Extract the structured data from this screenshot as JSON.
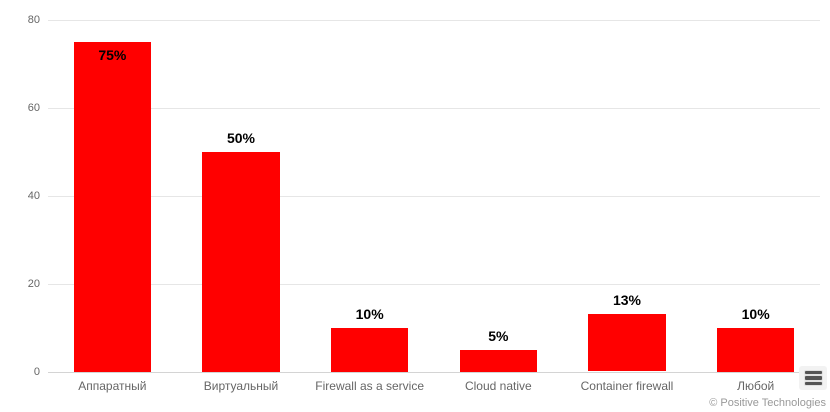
{
  "chart_data": {
    "type": "bar",
    "title": "",
    "xlabel": "",
    "ylabel": "",
    "categories": [
      "Аппаратный",
      "Виртуальный",
      "Firewall as a service",
      "Cloud native",
      "Container firewall",
      "Любой"
    ],
    "values": [
      75,
      50,
      10,
      5,
      13,
      10
    ],
    "data_labels": [
      "75%",
      "50%",
      "10%",
      "5%",
      "13%",
      "10%"
    ],
    "ylim": [
      0,
      80
    ],
    "yticks": [
      0,
      20,
      40,
      60,
      80
    ],
    "ytick_labels": [
      "0",
      "20",
      "40",
      "60",
      "80"
    ],
    "grid": true,
    "legend": "none",
    "bar_color": "#ff0000",
    "data_label_color": "#000000",
    "axis_label_color": "#666666",
    "gridline_color": "#e6e6e6"
  },
  "footer": {
    "credits": "© Positive Technologies"
  },
  "context_menu": {
    "icon": "hamburger-menu-icon"
  }
}
